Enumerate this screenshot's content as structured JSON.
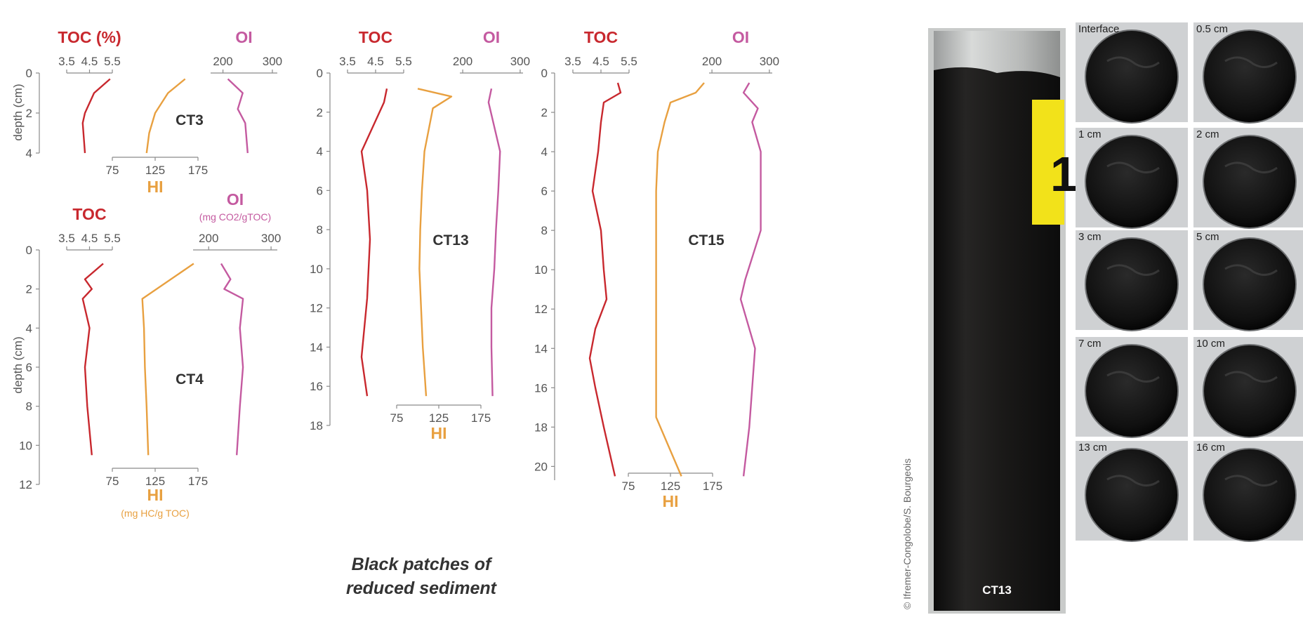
{
  "colors": {
    "toc": "#c8282e",
    "hi": "#e8a040",
    "oi": "#c45aa0",
    "axis": "#8a8a8a",
    "text": "#333333"
  },
  "caption": {
    "line1": "Black patches of",
    "line2": "reduced sediment"
  },
  "credit": "© Ifremer-Congolobe/S. Bourgeois",
  "core_photo_label": "CT13",
  "slices": [
    {
      "label": "Interface"
    },
    {
      "label": "0.5 cm"
    },
    {
      "label": "1 cm"
    },
    {
      "label": "2 cm"
    },
    {
      "label": "3 cm"
    },
    {
      "label": "5 cm"
    },
    {
      "label": "7 cm"
    },
    {
      "label": "10 cm"
    },
    {
      "label": "13 cm"
    },
    {
      "label": "16 cm"
    }
  ],
  "chart_data": [
    {
      "type": "line",
      "core": "CT3",
      "ylabel": "depth (cm)",
      "ylim": [
        4,
        0
      ],
      "depth_ticks": [
        "0",
        "2",
        "4"
      ],
      "toc": {
        "title": "TOC (%)",
        "xlim": [
          3.5,
          5.5
        ],
        "ticks": [
          "3.5",
          "4.5",
          "5.5"
        ],
        "depth": [
          0.3,
          1.0,
          2.0,
          2.5,
          4.0
        ],
        "values": [
          5.4,
          4.7,
          4.3,
          4.2,
          4.3
        ]
      },
      "oi": {
        "title": "OI",
        "unit": "",
        "xlim": [
          175,
          310
        ],
        "ticks": [
          "200",
          "300"
        ],
        "depth": [
          0.3,
          1.0,
          1.8,
          2.5,
          4.0
        ],
        "values": [
          210,
          240,
          230,
          245,
          250
        ]
      },
      "hi": {
        "title": "HI",
        "unit": "",
        "xlim": [
          75,
          175
        ],
        "ticks": [
          "75",
          "125",
          "175"
        ],
        "depth": [
          0.3,
          1.0,
          2.0,
          3.0,
          4.0
        ],
        "values": [
          160,
          140,
          125,
          118,
          115
        ]
      }
    },
    {
      "type": "line",
      "core": "CT4",
      "ylabel": "depth (cm)",
      "ylim": [
        12,
        0
      ],
      "depth_ticks": [
        "0",
        "2",
        "4",
        "6",
        "8",
        "10",
        "12"
      ],
      "toc": {
        "title": "TOC",
        "xlim": [
          3.5,
          5.5
        ],
        "ticks": [
          "3.5",
          "4.5",
          "5.5"
        ],
        "depth": [
          0.7,
          1.5,
          2.0,
          2.5,
          4.0,
          6.0,
          8.0,
          10.5
        ],
        "values": [
          5.1,
          4.3,
          4.6,
          4.2,
          4.5,
          4.3,
          4.4,
          4.6
        ]
      },
      "oi": {
        "title": "OI",
        "unit": "(mg CO2/gTOC)",
        "xlim": [
          175,
          310
        ],
        "ticks": [
          "200",
          "300"
        ],
        "depth": [
          0.7,
          1.5,
          2.0,
          2.5,
          4.0,
          6.0,
          8.0,
          10.5
        ],
        "values": [
          220,
          235,
          225,
          255,
          250,
          255,
          250,
          245
        ]
      },
      "hi": {
        "title": "HI",
        "unit": "(mg HC/g TOC)",
        "xlim": [
          75,
          175
        ],
        "ticks": [
          "75",
          "125",
          "175"
        ],
        "depth": [
          0.7,
          2.5,
          4.0,
          6.0,
          8.0,
          10.5
        ],
        "values": [
          170,
          110,
          112,
          113,
          115,
          117
        ]
      }
    },
    {
      "type": "line",
      "core": "CT13",
      "ylim": [
        18,
        0
      ],
      "depth_ticks": [
        "0",
        "2",
        "4",
        "6",
        "8",
        "10",
        "12",
        "14",
        "16",
        "18"
      ],
      "toc": {
        "title": "TOC",
        "xlim": [
          3.5,
          5.5
        ],
        "ticks": [
          "3.5",
          "4.5",
          "5.5"
        ],
        "depth": [
          0.8,
          1.5,
          4.0,
          6.0,
          8.5,
          11.5,
          14.5,
          16.5
        ],
        "values": [
          4.9,
          4.8,
          4.0,
          4.2,
          4.3,
          4.2,
          4.0,
          4.2
        ]
      },
      "oi": {
        "title": "OI",
        "xlim": [
          195,
          305
        ],
        "ticks": [
          "200",
          "300"
        ],
        "depth": [
          0.8,
          1.5,
          4.0,
          6.0,
          8.0,
          10.0,
          12.0,
          14.0,
          16.5
        ],
        "values": [
          250,
          245,
          265,
          262,
          258,
          255,
          250,
          250,
          252
        ]
      },
      "hi": {
        "title": "HI",
        "xlim": [
          75,
          175
        ],
        "ticks": [
          "75",
          "125",
          "175"
        ],
        "depth": [
          0.8,
          1.2,
          1.8,
          4.0,
          6.0,
          8.0,
          10.0,
          12.0,
          14.0,
          16.5
        ],
        "values": [
          100,
          140,
          118,
          108,
          105,
          103,
          102,
          104,
          106,
          110
        ]
      }
    },
    {
      "type": "line",
      "core": "CT15",
      "ylim": [
        20.7,
        0
      ],
      "depth_ticks": [
        "0",
        "2",
        "4",
        "6",
        "8",
        "10",
        "12",
        "14",
        "16",
        "18",
        "20"
      ],
      "toc": {
        "title": "TOC",
        "xlim": [
          3.5,
          5.5
        ],
        "ticks": [
          "3.5",
          "4.5",
          "5.5"
        ],
        "depth": [
          0.5,
          1.0,
          1.5,
          2.5,
          4.0,
          6.0,
          8.0,
          10.0,
          11.5,
          13.0,
          14.5,
          16.0,
          18.0,
          20.5
        ],
        "values": [
          5.1,
          5.2,
          4.6,
          4.5,
          4.4,
          4.2,
          4.5,
          4.6,
          4.7,
          4.3,
          4.1,
          4.3,
          4.6,
          5.0
        ]
      },
      "oi": {
        "title": "OI",
        "xlim": [
          195,
          305
        ],
        "ticks": [
          "200",
          "300"
        ],
        "depth": [
          0.5,
          1.0,
          1.8,
          2.5,
          4.0,
          8.0,
          10.5,
          11.5,
          14.0,
          18.0,
          20.5
        ],
        "values": [
          265,
          255,
          280,
          270,
          285,
          285,
          258,
          250,
          275,
          265,
          255
        ]
      },
      "hi": {
        "title": "HI",
        "xlim": [
          75,
          175
        ],
        "ticks": [
          "75",
          "125",
          "175"
        ],
        "depth": [
          0.5,
          1.0,
          1.5,
          2.5,
          4.0,
          6.0,
          10.0,
          14.0,
          17.5,
          18.5,
          20.5
        ],
        "values": [
          165,
          155,
          125,
          118,
          110,
          108,
          108,
          108,
          108,
          118,
          138
        ]
      }
    }
  ]
}
